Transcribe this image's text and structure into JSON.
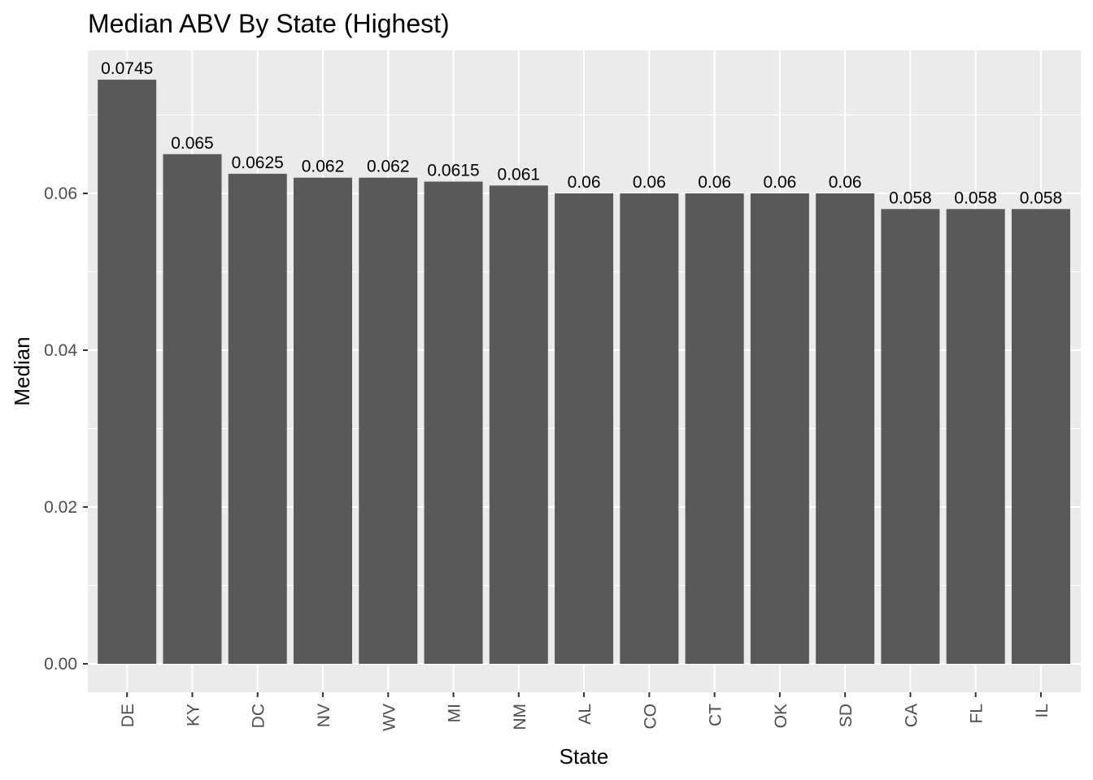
{
  "chart_data": {
    "type": "bar",
    "title": "Median ABV By State (Highest)",
    "xlabel": "State",
    "ylabel": "Median",
    "categories": [
      "DE",
      "KY",
      "DC",
      "NV",
      "WV",
      "MI",
      "NM",
      "AL",
      "CO",
      "CT",
      "OK",
      "SD",
      "CA",
      "FL",
      "IL"
    ],
    "values": [
      0.0745,
      0.065,
      0.0625,
      0.062,
      0.062,
      0.0615,
      0.061,
      0.06,
      0.06,
      0.06,
      0.06,
      0.06,
      0.058,
      0.058,
      0.058
    ],
    "data_labels": [
      "0.0745",
      "0.065",
      "0.0625",
      "0.062",
      "0.062",
      "0.0615",
      "0.061",
      "0.06",
      "0.06",
      "0.06",
      "0.06",
      "0.06",
      "0.058",
      "0.058",
      "0.058"
    ],
    "ylim": [
      0,
      0.0745
    ],
    "yticks": [
      0,
      0.02,
      0.04,
      0.06
    ],
    "ytick_labels": [
      "0.00",
      "0.02",
      "0.04",
      "0.06"
    ],
    "grid": true,
    "x_tick_rotation": "vertical",
    "colors": {
      "bar": "#595959",
      "panel": "#ebebeb",
      "grid": "#ffffff",
      "tick_text": "#4d4d4d",
      "text": "#000000"
    }
  }
}
